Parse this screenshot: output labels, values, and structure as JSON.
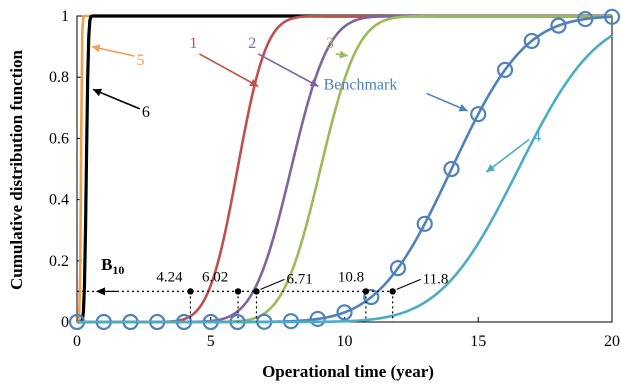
{
  "chart_data": {
    "type": "line",
    "xlabel": "Operational time (year)",
    "ylabel": "Cumulative distribution function",
    "xlim": [
      0,
      20
    ],
    "ylim": [
      0,
      1
    ],
    "x_ticks": [
      "0",
      "5",
      "10",
      "15",
      "20"
    ],
    "y_ticks": [
      "0",
      "0.2",
      "0.4",
      "0.6",
      "0.8",
      "1"
    ],
    "grid": false,
    "series": [
      {
        "name": "5",
        "color": "#f0a050",
        "mean": 0.15,
        "sd": 0.03,
        "label_x": 1.7,
        "label_y": 0.83
      },
      {
        "name": "6",
        "color": "#000000",
        "mean": 0.35,
        "sd": 0.06,
        "label_x": 1.9,
        "label_y": 0.69
      },
      {
        "name": "1",
        "color": "#c0504d",
        "mean": 6.0,
        "sd": 0.85,
        "label_x": 4.8,
        "label_y": 0.85
      },
      {
        "name": "2",
        "color": "#8064a2",
        "mean": 8.0,
        "sd": 1.1,
        "label_x": 7.0,
        "label_y": 0.85
      },
      {
        "name": "3",
        "color": "#9bbb59",
        "mean": 9.1,
        "sd": 1.1,
        "label_x": 9.9,
        "label_y": 0.85
      },
      {
        "name": "Benchmark",
        "color": "#4f81bd",
        "mean": 14.0,
        "sd": 2.15,
        "markers": true,
        "marker_x": [
          0,
          1,
          2,
          3,
          4,
          5,
          6,
          7,
          8,
          9,
          10,
          11,
          12,
          13,
          14,
          15,
          16,
          17,
          18,
          19,
          20
        ],
        "label_x": 10.9,
        "label_y": 0.76
      },
      {
        "name": "4",
        "color": "#4bacc6",
        "mean": 16.5,
        "sd": 2.3,
        "label_x": 16.3,
        "label_y": 0.59
      }
    ],
    "b10": {
      "label": "B10",
      "label_main": "B",
      "label_sub": "10",
      "level": 0.1,
      "points": [
        {
          "x": 4.24,
          "label": "4.24"
        },
        {
          "x": 6.02,
          "label": "6.02"
        },
        {
          "x": 6.71,
          "label": "6.71"
        },
        {
          "x": 10.8,
          "label": "10.8"
        },
        {
          "x": 11.8,
          "label": "11.8"
        }
      ]
    }
  }
}
